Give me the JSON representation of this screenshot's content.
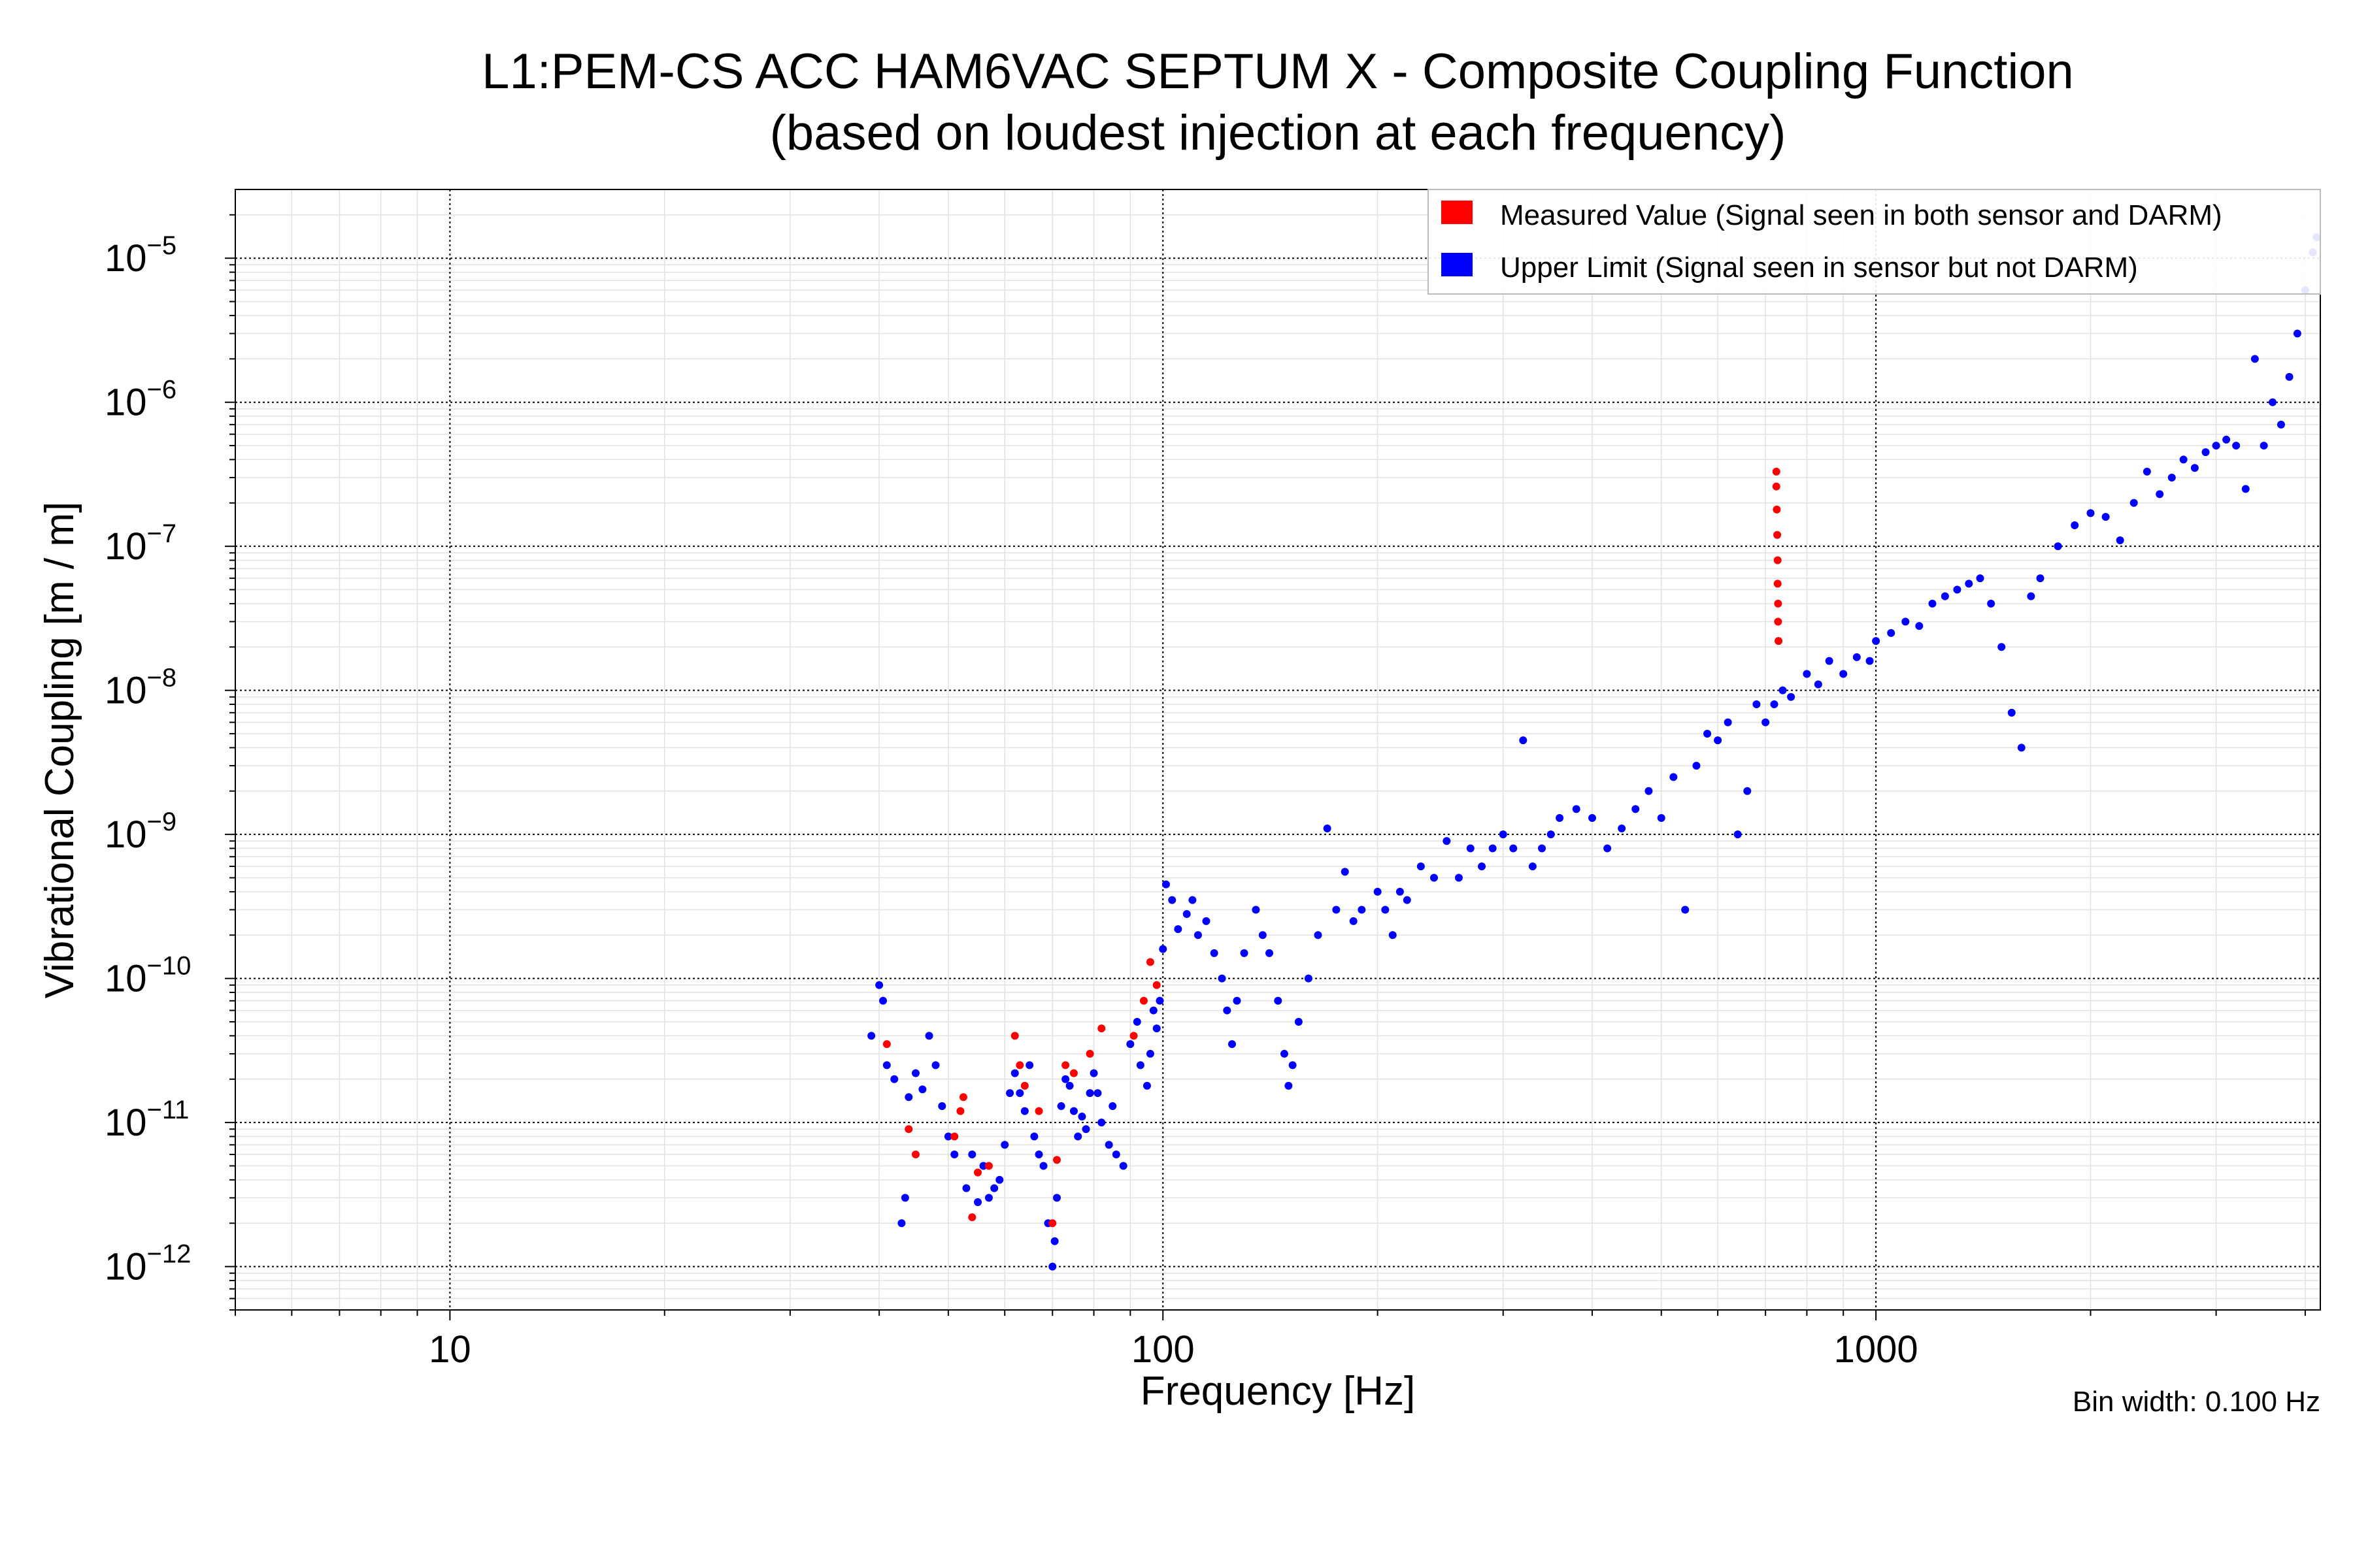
{
  "chart_data": {
    "type": "scatter",
    "title_lines": [
      "L1:PEM-CS ACC HAM6VAC SEPTUM X - Composite Coupling Function",
      "(based on loudest injection at each frequency)"
    ],
    "xlabel": "Frequency [Hz]",
    "ylabel": "Vibrational Coupling [m / m]",
    "x_scale": "log",
    "y_scale": "log",
    "xlim": [
      5,
      4200
    ],
    "ylim": [
      5e-13,
      3e-05
    ],
    "x_ticks": [
      {
        "value": 10,
        "label": "10"
      },
      {
        "value": 100,
        "label": "100"
      },
      {
        "value": 1000,
        "label": "1000"
      }
    ],
    "y_ticks": [
      {
        "value": 1e-12,
        "mantissa": "10",
        "exp": "−12"
      },
      {
        "value": 1e-11,
        "mantissa": "10",
        "exp": "−11"
      },
      {
        "value": 1e-10,
        "mantissa": "10",
        "exp": "−10"
      },
      {
        "value": 1e-09,
        "mantissa": "10",
        "exp": "−9"
      },
      {
        "value": 1e-08,
        "mantissa": "10",
        "exp": "−8"
      },
      {
        "value": 1e-07,
        "mantissa": "10",
        "exp": "−7"
      },
      {
        "value": 1e-06,
        "mantissa": "10",
        "exp": "−6"
      },
      {
        "value": 1e-05,
        "mantissa": "10",
        "exp": "−5"
      }
    ],
    "grid": true,
    "legend_position": "top-right",
    "annotation": "Bin width: 0.100 Hz",
    "series": [
      {
        "name": "Measured Value (Signal seen in both sensor and DARM)",
        "color": "#ff0000",
        "points": [
          [
            41,
            3.5e-11
          ],
          [
            44,
            9e-12
          ],
          [
            45,
            6e-12
          ],
          [
            51,
            8e-12
          ],
          [
            52,
            1.2e-11
          ],
          [
            52.5,
            1.5e-11
          ],
          [
            54,
            2.2e-12
          ],
          [
            55,
            4.5e-12
          ],
          [
            57,
            5e-12
          ],
          [
            62,
            4e-11
          ],
          [
            63,
            2.5e-11
          ],
          [
            64,
            1.8e-11
          ],
          [
            67,
            1.2e-11
          ],
          [
            70,
            2e-12
          ],
          [
            71,
            5.5e-12
          ],
          [
            73,
            2.5e-11
          ],
          [
            75,
            2.2e-11
          ],
          [
            79,
            3e-11
          ],
          [
            82,
            4.5e-11
          ],
          [
            91,
            4e-11
          ],
          [
            94,
            7e-11
          ],
          [
            96,
            1.3e-10
          ],
          [
            98,
            9e-11
          ],
          [
            725,
            3.3e-07
          ],
          [
            725,
            2.6e-07
          ],
          [
            726,
            1.8e-07
          ],
          [
            727,
            1.2e-07
          ],
          [
            728,
            8e-08
          ],
          [
            728,
            5.5e-08
          ],
          [
            729,
            4e-08
          ],
          [
            729,
            3e-08
          ],
          [
            730,
            2.2e-08
          ]
        ]
      },
      {
        "name": "Upper Limit (Signal seen in sensor but not DARM)",
        "color": "#0000ff",
        "points": [
          [
            39,
            4e-11
          ],
          [
            40,
            9e-11
          ],
          [
            40.5,
            7e-11
          ],
          [
            41,
            2.5e-11
          ],
          [
            42,
            2e-11
          ],
          [
            43,
            2e-12
          ],
          [
            43.5,
            3e-12
          ],
          [
            44,
            1.5e-11
          ],
          [
            45,
            2.2e-11
          ],
          [
            46,
            1.7e-11
          ],
          [
            47,
            4e-11
          ],
          [
            48,
            2.5e-11
          ],
          [
            49,
            1.3e-11
          ],
          [
            50,
            8e-12
          ],
          [
            51,
            6e-12
          ],
          [
            53,
            3.5e-12
          ],
          [
            54,
            6e-12
          ],
          [
            55,
            2.8e-12
          ],
          [
            56,
            5e-12
          ],
          [
            57,
            3e-12
          ],
          [
            58,
            3.5e-12
          ],
          [
            59,
            4e-12
          ],
          [
            60,
            7e-12
          ],
          [
            61,
            1.6e-11
          ],
          [
            62,
            2.2e-11
          ],
          [
            63,
            1.6e-11
          ],
          [
            64,
            1.2e-11
          ],
          [
            65,
            2.5e-11
          ],
          [
            66,
            8e-12
          ],
          [
            67,
            6e-12
          ],
          [
            68,
            5e-12
          ],
          [
            69,
            2e-12
          ],
          [
            70,
            1e-12
          ],
          [
            70.5,
            1.5e-12
          ],
          [
            71,
            3e-12
          ],
          [
            72,
            1.3e-11
          ],
          [
            73,
            2e-11
          ],
          [
            74,
            1.8e-11
          ],
          [
            75,
            1.2e-11
          ],
          [
            76,
            8e-12
          ],
          [
            77,
            1.1e-11
          ],
          [
            78,
            9e-12
          ],
          [
            79,
            1.6e-11
          ],
          [
            80,
            2.2e-11
          ],
          [
            81,
            1.6e-11
          ],
          [
            82,
            1e-11
          ],
          [
            84,
            7e-12
          ],
          [
            85,
            1.3e-11
          ],
          [
            86,
            6e-12
          ],
          [
            88,
            5e-12
          ],
          [
            90,
            3.5e-11
          ],
          [
            92,
            5e-11
          ],
          [
            93,
            2.5e-11
          ],
          [
            95,
            1.8e-11
          ],
          [
            96,
            3e-11
          ],
          [
            97,
            6e-11
          ],
          [
            98,
            4.5e-11
          ],
          [
            99,
            7e-11
          ],
          [
            100,
            1.6e-10
          ],
          [
            101,
            4.5e-10
          ],
          [
            103,
            3.5e-10
          ],
          [
            105,
            2.2e-10
          ],
          [
            108,
            2.8e-10
          ],
          [
            110,
            3.5e-10
          ],
          [
            112,
            2e-10
          ],
          [
            115,
            2.5e-10
          ],
          [
            118,
            1.5e-10
          ],
          [
            121,
            1e-10
          ],
          [
            123,
            6e-11
          ],
          [
            125,
            3.5e-11
          ],
          [
            127,
            7e-11
          ],
          [
            130,
            1.5e-10
          ],
          [
            135,
            3e-10
          ],
          [
            138,
            2e-10
          ],
          [
            141,
            1.5e-10
          ],
          [
            145,
            7e-11
          ],
          [
            148,
            3e-11
          ],
          [
            150,
            1.8e-11
          ],
          [
            152,
            2.5e-11
          ],
          [
            155,
            5e-11
          ],
          [
            160,
            1e-10
          ],
          [
            165,
            2e-10
          ],
          [
            170,
            1.1e-09
          ],
          [
            175,
            3e-10
          ],
          [
            180,
            5.5e-10
          ],
          [
            185,
            2.5e-10
          ],
          [
            190,
            3e-10
          ],
          [
            200,
            4e-10
          ],
          [
            205,
            3e-10
          ],
          [
            210,
            2e-10
          ],
          [
            215,
            4e-10
          ],
          [
            220,
            3.5e-10
          ],
          [
            230,
            6e-10
          ],
          [
            240,
            5e-10
          ],
          [
            250,
            9e-10
          ],
          [
            260,
            5e-10
          ],
          [
            270,
            8e-10
          ],
          [
            280,
            6e-10
          ],
          [
            290,
            8e-10
          ],
          [
            300,
            1e-09
          ],
          [
            310,
            8e-10
          ],
          [
            320,
            4.5e-09
          ],
          [
            330,
            6e-10
          ],
          [
            340,
            8e-10
          ],
          [
            350,
            1e-09
          ],
          [
            360,
            1.3e-09
          ],
          [
            380,
            1.5e-09
          ],
          [
            400,
            1.3e-09
          ],
          [
            420,
            8e-10
          ],
          [
            440,
            1.1e-09
          ],
          [
            460,
            1.5e-09
          ],
          [
            480,
            2e-09
          ],
          [
            500,
            1.3e-09
          ],
          [
            520,
            2.5e-09
          ],
          [
            540,
            3e-10
          ],
          [
            560,
            3e-09
          ],
          [
            580,
            5e-09
          ],
          [
            600,
            4.5e-09
          ],
          [
            620,
            6e-09
          ],
          [
            640,
            1e-09
          ],
          [
            660,
            2e-09
          ],
          [
            680,
            8e-09
          ],
          [
            700,
            6e-09
          ],
          [
            720,
            8e-09
          ],
          [
            740,
            1e-08
          ],
          [
            760,
            9e-09
          ],
          [
            800,
            1.3e-08
          ],
          [
            830,
            1.1e-08
          ],
          [
            860,
            1.6e-08
          ],
          [
            900,
            1.3e-08
          ],
          [
            940,
            1.7e-08
          ],
          [
            980,
            1.6e-08
          ],
          [
            1000,
            2.2e-08
          ],
          [
            1050,
            2.5e-08
          ],
          [
            1100,
            3e-08
          ],
          [
            1150,
            2.8e-08
          ],
          [
            1200,
            4e-08
          ],
          [
            1250,
            4.5e-08
          ],
          [
            1300,
            5e-08
          ],
          [
            1350,
            5.5e-08
          ],
          [
            1400,
            6e-08
          ],
          [
            1450,
            4e-08
          ],
          [
            1500,
            2e-08
          ],
          [
            1550,
            7e-09
          ],
          [
            1600,
            4e-09
          ],
          [
            1650,
            4.5e-08
          ],
          [
            1700,
            6e-08
          ],
          [
            1800,
            1e-07
          ],
          [
            1900,
            1.4e-07
          ],
          [
            2000,
            1.7e-07
          ],
          [
            2100,
            1.6e-07
          ],
          [
            2200,
            1.1e-07
          ],
          [
            2300,
            2e-07
          ],
          [
            2400,
            3.3e-07
          ],
          [
            2500,
            2.3e-07
          ],
          [
            2600,
            3e-07
          ],
          [
            2700,
            4e-07
          ],
          [
            2800,
            3.5e-07
          ],
          [
            2900,
            4.5e-07
          ],
          [
            3000,
            5e-07
          ],
          [
            3100,
            5.5e-07
          ],
          [
            3200,
            5e-07
          ],
          [
            3300,
            2.5e-07
          ],
          [
            3400,
            2e-06
          ],
          [
            3500,
            5e-07
          ],
          [
            3600,
            1e-06
          ],
          [
            3700,
            7e-07
          ],
          [
            3800,
            1.5e-06
          ],
          [
            3900,
            3e-06
          ],
          [
            4000,
            6e-06
          ],
          [
            4100,
            1.1e-05
          ],
          [
            4150,
            1.4e-05
          ]
        ]
      }
    ]
  }
}
